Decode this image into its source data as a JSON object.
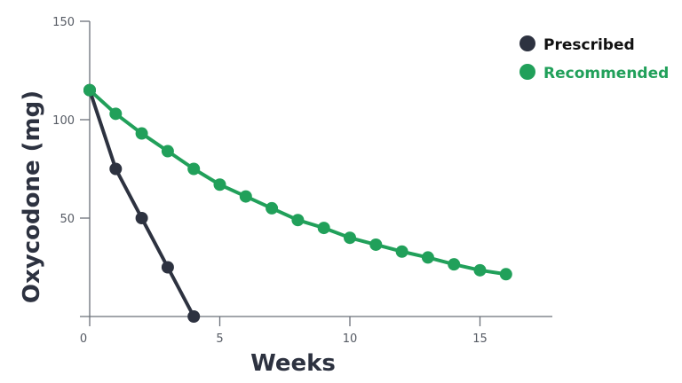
{
  "chart_data": {
    "type": "line",
    "title": "",
    "xlabel": "Weeks",
    "ylabel": "Oxycodone (mg)",
    "xlim": [
      0,
      18
    ],
    "ylim": [
      0,
      150
    ],
    "x_ticks": [
      0,
      5,
      10,
      15
    ],
    "y_ticks": [
      50,
      100,
      150
    ],
    "grid": false,
    "legend_position": "top-right",
    "series": [
      {
        "name": "Prescribed",
        "color": "#2d3240",
        "x": [
          0,
          1,
          2,
          3,
          4
        ],
        "values": [
          115,
          75,
          50,
          25,
          0
        ]
      },
      {
        "name": "Recommended",
        "color": "#21a05a",
        "x": [
          0,
          1,
          2,
          3,
          4,
          5,
          6,
          7,
          8,
          9,
          10,
          11,
          12,
          13,
          14,
          15,
          16
        ],
        "values": [
          115,
          103,
          93,
          84,
          75,
          67,
          61,
          55,
          49,
          45,
          40,
          36.5,
          33,
          30,
          26.5,
          23.5,
          21.5
        ]
      }
    ]
  },
  "legend": {
    "items": [
      {
        "label": "Prescribed",
        "color": "#2d3240",
        "text_color": "#111111"
      },
      {
        "label": "Recommended",
        "color": "#21a05a",
        "text_color": "#21a05a"
      }
    ]
  },
  "axes": {
    "x_title": "Weeks",
    "y_title": "Oxycodone (mg)",
    "x_tick_labels": [
      "0",
      "5",
      "10",
      "15"
    ],
    "y_tick_labels": [
      "50",
      "100",
      "150"
    ]
  }
}
